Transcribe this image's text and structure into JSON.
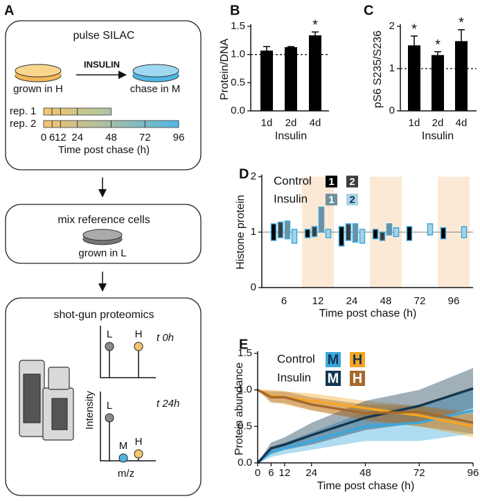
{
  "diagram": {
    "label": "A",
    "pulse": {
      "title": "pulse SILAC",
      "treatment": "INSULIN",
      "source": "grown in H",
      "target": "chase in M",
      "replicates": [
        {
          "label": "rep. 1",
          "end": 48
        },
        {
          "label": "rep. 2",
          "end": 96
        }
      ],
      "timeline": {
        "xlim": [
          0,
          96
        ],
        "ticks": [
          0,
          6,
          12,
          24,
          48,
          72,
          96
        ],
        "title": "Time post chase (h)"
      }
    },
    "mix": {
      "title": "mix reference cells",
      "dish": "grown in L"
    },
    "ms": {
      "title": "shot-gun proteomics",
      "y_label": "Intensity",
      "x_label": "m/z",
      "spectra": [
        {
          "time": "t 0h",
          "peaks": [
            "L",
            "H"
          ]
        },
        {
          "time": "t 24h",
          "peaks": [
            "L",
            "M",
            "H"
          ]
        }
      ]
    }
  },
  "chart_data": [
    {
      "type": "bar",
      "label": "B",
      "y_label": "Protein/DNA",
      "x_label": "Insulin",
      "categories": [
        "1d",
        "2d",
        "4d"
      ],
      "values": [
        1.07,
        1.13,
        1.34
      ],
      "errors": [
        0.07,
        0.01,
        0.06
      ],
      "color": "#000000",
      "ylim": [
        0,
        1.5
      ],
      "yticks": [
        {
          "value": 0,
          "label": "0.0"
        },
        {
          "value": 0.5,
          "label": "0.5"
        },
        {
          "value": 1,
          "label": "1.0"
        },
        {
          "value": 1.5,
          "label": "1.5"
        }
      ],
      "hline": 1,
      "annotations": [
        {
          "text": "*",
          "category": "4d"
        }
      ]
    },
    {
      "type": "bar",
      "label": "C",
      "y_label": "pS6 S235/S236",
      "x_label": "Insulin",
      "categories": [
        "1d",
        "2d",
        "4d"
      ],
      "values": [
        1.55,
        1.32,
        1.65
      ],
      "errors": [
        0.22,
        0.08,
        0.27
      ],
      "color": "#000000",
      "ylim": [
        0,
        2
      ],
      "yticks": [
        0,
        1,
        2
      ],
      "hline": 1,
      "annotations": [
        {
          "text": "*",
          "category": "1d"
        },
        {
          "text": "*",
          "category": "2d"
        },
        {
          "text": "*",
          "category": "4d"
        }
      ]
    },
    {
      "type": "box",
      "label": "D",
      "y_label": "Histone protein",
      "x_label": "Time post chase (h)",
      "categories": [
        "6",
        "12",
        "24",
        "48",
        "72",
        "96"
      ],
      "highlight": [
        "12",
        "48",
        "96"
      ],
      "highlight_color": "#fbe9d6",
      "edge_color": "#3aa8dc",
      "ylim": [
        0,
        2
      ],
      "yticks": [
        0,
        1,
        2
      ],
      "hline": 1,
      "series": [
        {
          "group": "Control",
          "name": "1",
          "color": "#000000",
          "low": [
            0.85,
            0.9,
            0.75,
            0.88,
            0.85,
            0.88
          ],
          "high": [
            1.15,
            1.05,
            1.1,
            1.05,
            1.1,
            1.08
          ]
        },
        {
          "group": "Control",
          "name": "2",
          "color": "#3c3c3c",
          "low": [
            0.9,
            0.92,
            0.85,
            0.85,
            null,
            null
          ],
          "high": [
            1.18,
            1.1,
            1.15,
            1.0,
            null,
            null
          ]
        },
        {
          "group": "Insulin",
          "name": "1",
          "color": "#6f8f9e",
          "low": [
            0.88,
            1.0,
            0.82,
            0.95,
            null,
            null
          ],
          "high": [
            1.2,
            1.45,
            1.15,
            1.15,
            null,
            null
          ]
        },
        {
          "group": "Insulin",
          "name": "2",
          "color": "#a9d3e6",
          "low": [
            0.8,
            0.9,
            0.8,
            0.92,
            0.95,
            0.9
          ],
          "high": [
            1.05,
            1.05,
            1.05,
            1.08,
            1.15,
            1.1
          ]
        }
      ]
    },
    {
      "type": "line",
      "label": "E",
      "y_label": "Protein abundance",
      "x_label": "Time post chase (h)",
      "x": [
        0,
        6,
        12,
        24,
        48,
        72,
        96
      ],
      "xlim": [
        0,
        96
      ],
      "xticks": [
        0,
        6,
        12,
        24,
        48,
        72,
        96
      ],
      "ylim": [
        0,
        1.5
      ],
      "yticks": [
        {
          "value": 0,
          "label": "0.0"
        },
        {
          "value": 0.5,
          "label": "0.5"
        },
        {
          "value": 1,
          "label": "1.0"
        },
        {
          "value": 1.5,
          "label": "1.5"
        }
      ],
      "series": [
        {
          "group": "Control",
          "name": "M",
          "color": "#3aa8dc",
          "values": [
            0,
            0.15,
            0.2,
            0.3,
            0.5,
            0.55,
            0.72
          ],
          "lower": [
            0,
            0.08,
            0.12,
            0.18,
            0.3,
            0.3,
            0.4
          ],
          "upper": [
            0,
            0.22,
            0.28,
            0.42,
            0.7,
            0.8,
            1.0
          ]
        },
        {
          "group": "Control",
          "name": "H",
          "color": "#f5a623",
          "values": [
            1.0,
            0.92,
            0.9,
            0.85,
            0.75,
            0.65,
            0.5
          ],
          "lower": [
            1.0,
            0.85,
            0.8,
            0.72,
            0.6,
            0.5,
            0.35
          ],
          "upper": [
            1.0,
            1.0,
            0.98,
            0.95,
            0.85,
            0.78,
            0.65
          ]
        },
        {
          "group": "Insulin",
          "name": "M",
          "color": "#143650",
          "values": [
            0,
            0.2,
            0.25,
            0.38,
            0.62,
            0.78,
            1.02
          ],
          "lower": [
            0,
            0.12,
            0.18,
            0.25,
            0.45,
            0.55,
            0.75
          ],
          "upper": [
            0,
            0.28,
            0.35,
            0.55,
            0.85,
            1.0,
            1.3
          ]
        },
        {
          "group": "Insulin",
          "name": "H",
          "color": "#a5692c",
          "values": [
            1.0,
            0.9,
            0.9,
            0.8,
            0.68,
            0.7,
            0.55
          ],
          "lower": [
            1.0,
            0.82,
            0.82,
            0.72,
            0.58,
            0.5,
            0.4
          ],
          "upper": [
            1.0,
            0.98,
            0.98,
            0.9,
            0.8,
            0.78,
            0.7
          ]
        }
      ]
    }
  ]
}
